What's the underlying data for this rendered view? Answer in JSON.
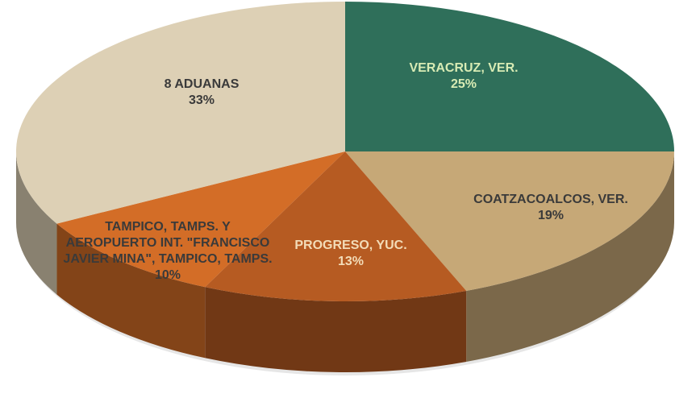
{
  "chart_data": {
    "type": "pie",
    "categories": [
      "VERACRUZ, VER.",
      "COATZACOALCOS, VER.",
      "PROGRESO, YUC.",
      "TAMPICO, TAMPS. Y AEROPUERTO INT. \"FRANCISCO JAVIER MINA\", TAMPICO, TAMPS.",
      "8 ADUANAS"
    ],
    "values": [
      25,
      19,
      13,
      10,
      33
    ],
    "value_labels": [
      "25%",
      "19%",
      "13%",
      "10%",
      "33%"
    ],
    "colors": [
      "#2f6f5a",
      "#c6a877",
      "#b65b22",
      "#d36d27",
      "#ddd0b5"
    ],
    "label_colors": [
      "#d8ebb4",
      "#3a3a3a",
      "#f3dcb8",
      "#3a3a3a",
      "#3a3a3a"
    ]
  }
}
